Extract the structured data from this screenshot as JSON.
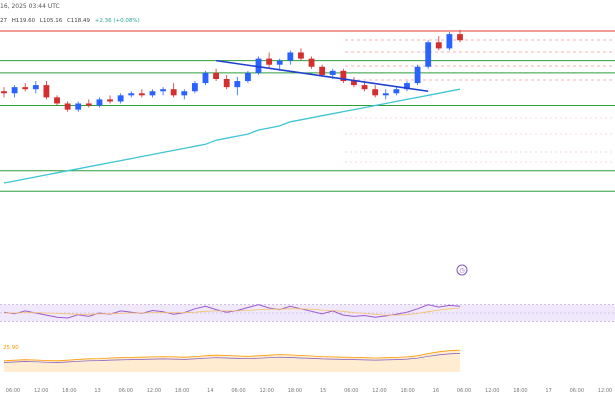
{
  "header": {
    "title_fragment": "16, 2025 03:44 UTC",
    "ohlc_prefix": "27",
    "high": "H119.60",
    "low": "L105.16",
    "close": "C118.49",
    "change": "+2.36 (+0.08%)"
  },
  "indicator_label": "25.90",
  "badge_icon": "clock-icon",
  "colors": {
    "up": "#26a69a",
    "down": "#e53935",
    "sma": "#3ec6d3",
    "trendline": "#1e3fd0",
    "level": "#2e7d32",
    "resistance": "#e57373",
    "rsi": "#9c59d1",
    "rsi_band": "#ece3fb"
  },
  "chart_data": [
    {
      "type": "candlestick",
      "y_range": [
        0,
        100
      ],
      "x_ticks": [
        "06:00",
        "12:00",
        "18:00",
        "13",
        "06:00",
        "12:00",
        "18:00",
        "14",
        "06:00",
        "12:00",
        "18:00",
        "15",
        "06:00",
        "12:00",
        "18:00",
        "16",
        "06:00",
        "12:00",
        "18:00",
        "17",
        "06:00",
        "12:00"
      ],
      "candles": [
        {
          "o": 69,
          "h": 71,
          "l": 66,
          "c": 68
        },
        {
          "o": 68,
          "h": 72,
          "l": 66,
          "c": 71
        },
        {
          "o": 71,
          "h": 73,
          "l": 69,
          "c": 70
        },
        {
          "o": 70,
          "h": 74,
          "l": 68,
          "c": 72
        },
        {
          "o": 72,
          "h": 74,
          "l": 65,
          "c": 66
        },
        {
          "o": 66,
          "h": 67,
          "l": 62,
          "c": 63
        },
        {
          "o": 63,
          "h": 64,
          "l": 59,
          "c": 60
        },
        {
          "o": 60,
          "h": 64,
          "l": 59,
          "c": 63
        },
        {
          "o": 63,
          "h": 65,
          "l": 61,
          "c": 62
        },
        {
          "o": 62,
          "h": 66,
          "l": 61,
          "c": 65
        },
        {
          "o": 65,
          "h": 67,
          "l": 63,
          "c": 64
        },
        {
          "o": 64,
          "h": 68,
          "l": 63,
          "c": 67
        },
        {
          "o": 67,
          "h": 69,
          "l": 66,
          "c": 68
        },
        {
          "o": 68,
          "h": 70,
          "l": 66,
          "c": 67
        },
        {
          "o": 67,
          "h": 70,
          "l": 66,
          "c": 69
        },
        {
          "o": 69,
          "h": 71,
          "l": 67,
          "c": 70
        },
        {
          "o": 70,
          "h": 73,
          "l": 66,
          "c": 67
        },
        {
          "o": 67,
          "h": 70,
          "l": 65,
          "c": 69
        },
        {
          "o": 69,
          "h": 74,
          "l": 68,
          "c": 73
        },
        {
          "o": 73,
          "h": 79,
          "l": 72,
          "c": 78
        },
        {
          "o": 78,
          "h": 80,
          "l": 74,
          "c": 75
        },
        {
          "o": 75,
          "h": 77,
          "l": 70,
          "c": 71
        },
        {
          "o": 71,
          "h": 76,
          "l": 67,
          "c": 74
        },
        {
          "o": 74,
          "h": 79,
          "l": 73,
          "c": 78
        },
        {
          "o": 78,
          "h": 86,
          "l": 77,
          "c": 85
        },
        {
          "o": 85,
          "h": 88,
          "l": 80,
          "c": 82
        },
        {
          "o": 82,
          "h": 85,
          "l": 79,
          "c": 84
        },
        {
          "o": 84,
          "h": 89,
          "l": 82,
          "c": 88
        },
        {
          "o": 88,
          "h": 90,
          "l": 84,
          "c": 85
        },
        {
          "o": 85,
          "h": 86,
          "l": 80,
          "c": 81
        },
        {
          "o": 81,
          "h": 82,
          "l": 76,
          "c": 77
        },
        {
          "o": 77,
          "h": 80,
          "l": 75,
          "c": 79
        },
        {
          "o": 79,
          "h": 80,
          "l": 73,
          "c": 74
        },
        {
          "o": 74,
          "h": 76,
          "l": 71,
          "c": 72
        },
        {
          "o": 72,
          "h": 74,
          "l": 69,
          "c": 70
        },
        {
          "o": 70,
          "h": 72,
          "l": 66,
          "c": 67
        },
        {
          "o": 67,
          "h": 70,
          "l": 65,
          "c": 68
        },
        {
          "o": 68,
          "h": 71,
          "l": 67,
          "c": 70
        },
        {
          "o": 70,
          "h": 74,
          "l": 69,
          "c": 73
        },
        {
          "o": 73,
          "h": 82,
          "l": 72,
          "c": 81
        },
        {
          "o": 81,
          "h": 94,
          "l": 80,
          "c": 93
        },
        {
          "o": 93,
          "h": 96,
          "l": 89,
          "c": 90
        },
        {
          "o": 90,
          "h": 98,
          "l": 89,
          "c": 97
        },
        {
          "o": 97,
          "h": 99,
          "l": 93,
          "c": 94
        }
      ],
      "sma": [
        24,
        25,
        26,
        27,
        28,
        29,
        30,
        31,
        32,
        33,
        34,
        35,
        36,
        37,
        38,
        39,
        40,
        41,
        42,
        43,
        45,
        46,
        47,
        48,
        50,
        51,
        52,
        54,
        55,
        56,
        57,
        58,
        59,
        60,
        61,
        62,
        63,
        64,
        65,
        66,
        67,
        68,
        69,
        70
      ],
      "levels": [
        {
          "y": 98.5,
          "kind": "resistance"
        },
        {
          "y": 84,
          "kind": "support"
        },
        {
          "y": 78,
          "kind": "support"
        },
        {
          "y": 62,
          "kind": "support"
        },
        {
          "y": 30,
          "kind": "support"
        },
        {
          "y": 20,
          "kind": "support"
        }
      ],
      "trendline": {
        "from": {
          "i": 20,
          "v": 84
        },
        "to": {
          "i": 40,
          "v": 69
        }
      }
    },
    {
      "type": "line",
      "name_visible": false,
      "y_range": [
        0,
        100
      ],
      "values": [
        52,
        48,
        55,
        50,
        45,
        40,
        38,
        46,
        42,
        50,
        47,
        55,
        52,
        49,
        56,
        53,
        47,
        51,
        60,
        66,
        58,
        52,
        56,
        63,
        70,
        62,
        58,
        66,
        60,
        54,
        48,
        55,
        45,
        42,
        44,
        40,
        43,
        47,
        52,
        60,
        70,
        64,
        68,
        66
      ],
      "signal": [
        50,
        50,
        51,
        51,
        50,
        49,
        48,
        47,
        47,
        48,
        48,
        49,
        50,
        50,
        51,
        51,
        51,
        51,
        52,
        54,
        55,
        55,
        55,
        56,
        58,
        59,
        59,
        60,
        60,
        59,
        57,
        56,
        54,
        51,
        49,
        47,
        45,
        45,
        46,
        49,
        53,
        57,
        60,
        62
      ]
    },
    {
      "type": "area",
      "y_range": [
        0,
        100
      ],
      "values": [
        40,
        42,
        44,
        43,
        41,
        40,
        42,
        45,
        47,
        48,
        50,
        51,
        52,
        53,
        54,
        55,
        54,
        53,
        55,
        58,
        60,
        59,
        57,
        56,
        58,
        60,
        62,
        61,
        59,
        57,
        55,
        54,
        53,
        52,
        51,
        50,
        51,
        52,
        54,
        58,
        66,
        72,
        76,
        78
      ]
    }
  ]
}
